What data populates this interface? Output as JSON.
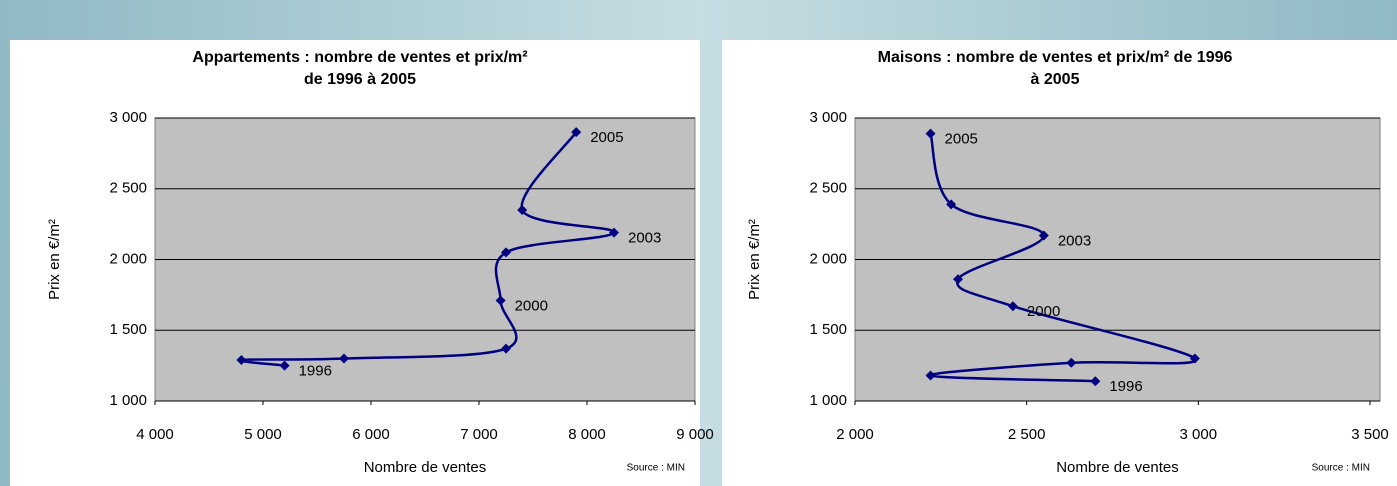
{
  "chart_data": [
    {
      "type": "line",
      "title": "Appartements : nombre de ventes et prix/m² de 1996 à 2005",
      "title_lines": [
        "Appartements : nombre de ventes et prix/m²",
        "de 1996 à 2005"
      ],
      "x_label": "Nombre de ventes",
      "y_label": "Prix en €/m²",
      "source": "Source : MIN",
      "color": "#000080",
      "grid": true,
      "x": [
        5200,
        4800,
        5750,
        7250,
        7200,
        7250,
        8250,
        7400,
        7900
      ],
      "values": [
        1250,
        1290,
        1300,
        1370,
        1710,
        2050,
        2190,
        2350,
        2900
      ],
      "annotations": [
        {
          "text": "1996",
          "point": 0
        },
        {
          "text": "2000",
          "point": 4
        },
        {
          "text": "2003",
          "point": 6
        },
        {
          "text": "2005",
          "point": 8
        }
      ],
      "xlim": [
        4000,
        9000
      ],
      "xticks": [
        {
          "value": 4000,
          "label": "4 000"
        },
        {
          "value": 5000,
          "label": "5 000"
        },
        {
          "value": 6000,
          "label": "6 000"
        },
        {
          "value": 7000,
          "label": "7 000"
        },
        {
          "value": 8000,
          "label": "8 000"
        },
        {
          "value": 9000,
          "label": "9 000"
        }
      ],
      "ylim": [
        1000,
        3000
      ],
      "yticks": [
        {
          "value": 1000,
          "label": "1 000"
        },
        {
          "value": 1500,
          "label": "1 500"
        },
        {
          "value": 2000,
          "label": "2 000"
        },
        {
          "value": 2500,
          "label": "2 500"
        },
        {
          "value": 3000,
          "label": "3 000"
        }
      ]
    },
    {
      "type": "line",
      "title": "Maisons : nombre de ventes et prix/m² de 1996 à 2005",
      "title_lines": [
        "Maisons : nombre de ventes et prix/m² de 1996",
        "à 2005"
      ],
      "x_label": "Nombre de ventes",
      "y_label": "Prix en €/m²",
      "source": "Source : MIN",
      "color": "#000080",
      "grid": true,
      "x": [
        2700,
        2220,
        2630,
        2990,
        2460,
        2300,
        2550,
        2280,
        2220
      ],
      "values": [
        1140,
        1180,
        1270,
        1300,
        1670,
        1860,
        2170,
        2390,
        2890
      ],
      "annotations": [
        {
          "text": "1996",
          "point": 0
        },
        {
          "text": "2000",
          "point": 4
        },
        {
          "text": "2003",
          "point": 6
        },
        {
          "text": "2005",
          "point": 8
        }
      ],
      "xlim": [
        2000,
        3500
      ],
      "xticks": [
        {
          "value": 2000,
          "label": "2 000"
        },
        {
          "value": 2500,
          "label": "2 500"
        },
        {
          "value": 3000,
          "label": "3 000"
        },
        {
          "value": 3500,
          "label": "3 500"
        }
      ],
      "ylim": [
        1000,
        3000
      ],
      "yticks": [
        {
          "value": 1000,
          "label": "1 000"
        },
        {
          "value": 1500,
          "label": "1 500"
        },
        {
          "value": 2000,
          "label": "2 000"
        },
        {
          "value": 2500,
          "label": "2 500"
        },
        {
          "value": 3000,
          "label": "3 000"
        }
      ]
    }
  ]
}
